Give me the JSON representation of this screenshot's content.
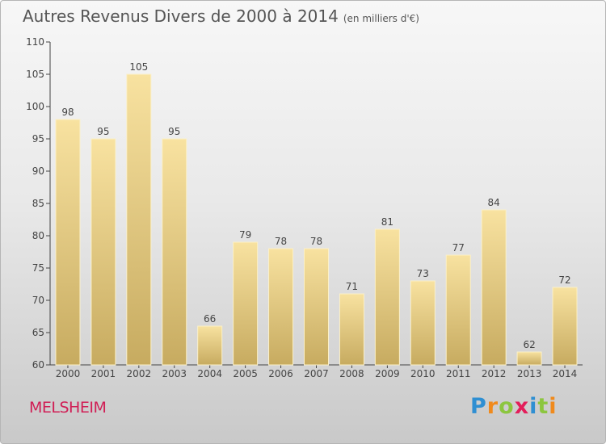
{
  "header": {
    "title": "Autres Revenus Divers de 2000 à 2014",
    "unit": "(en milliers d'€)"
  },
  "footer": {
    "town": "MELSHEIM",
    "logo": "Proxiti",
    "logo_letters": [
      {
        "char": "P",
        "color": "#2f8fd2"
      },
      {
        "char": "r",
        "color": "#f08a1c"
      },
      {
        "char": "o",
        "color": "#8cc63f"
      },
      {
        "char": "x",
        "color": "#e31e5a"
      },
      {
        "char": "i",
        "color": "#2f8fd2"
      },
      {
        "char": "t",
        "color": "#8cc63f"
      },
      {
        "char": "i",
        "color": "#f08a1c"
      }
    ]
  },
  "chart_data": {
    "type": "bar",
    "title": "Autres Revenus Divers de 2000 à 2014",
    "subtitle": "(en milliers d'€)",
    "categories": [
      "2000",
      "2001",
      "2002",
      "2003",
      "2004",
      "2005",
      "2006",
      "2007",
      "2008",
      "2009",
      "2010",
      "2011",
      "2012",
      "2013",
      "2014"
    ],
    "values": [
      98,
      95,
      105,
      95,
      66,
      79,
      78,
      78,
      71,
      81,
      73,
      77,
      84,
      62,
      72
    ],
    "ylim": [
      60,
      110
    ],
    "yticks": [
      60,
      65,
      70,
      75,
      80,
      85,
      90,
      95,
      100,
      105,
      110
    ],
    "grid": false,
    "legend": "none",
    "colors": {
      "bar_top": "#f8e2a0",
      "bar_bottom": "#c7ab60",
      "axis": "#444444",
      "text": "#444444"
    }
  }
}
